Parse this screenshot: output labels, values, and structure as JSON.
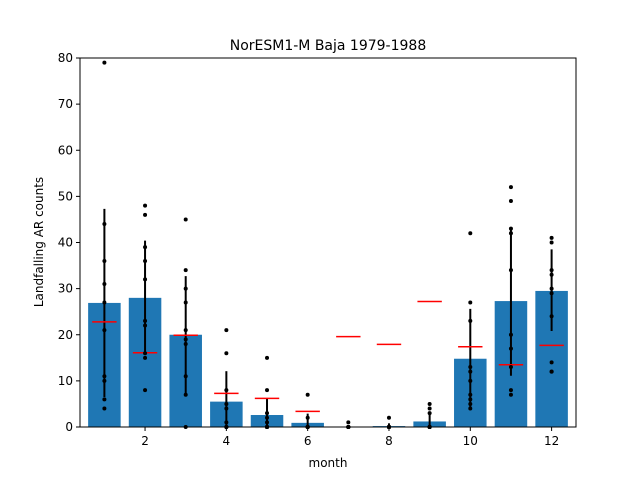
{
  "chart_data": {
    "type": "bar",
    "title": "NorESM1-M Baja 1979-1988",
    "xlabel": "month",
    "ylabel": "Landfalling AR counts",
    "ylim": [
      0,
      80
    ],
    "xlim": [
      0.4,
      12.6
    ],
    "grid": false,
    "x_ticks": [
      2,
      4,
      6,
      8,
      10,
      12
    ],
    "y_ticks": [
      0,
      10,
      20,
      30,
      40,
      50,
      60,
      70,
      80
    ],
    "categories": [
      1,
      2,
      3,
      4,
      5,
      6,
      7,
      8,
      9,
      10,
      11,
      12
    ],
    "values": [
      26.9,
      28.0,
      20.0,
      5.5,
      2.6,
      0.9,
      0.1,
      0.2,
      1.2,
      14.8,
      27.3,
      29.5
    ],
    "error_low": [
      6.5,
      15.6,
      7.3,
      0.0,
      0.0,
      0.0,
      0.0,
      0.0,
      0.0,
      4.2,
      11.1,
      20.8
    ],
    "error_high": [
      47.3,
      40.4,
      32.7,
      12.1,
      6.2,
      2.9,
      0.4,
      0.8,
      3.2,
      25.6,
      43.0,
      38.5
    ],
    "points": [
      [
        79,
        44,
        36,
        31,
        27,
        21,
        11,
        10,
        6,
        4
      ],
      [
        48,
        46,
        39,
        36,
        32,
        23,
        22,
        16,
        15,
        8
      ],
      [
        45,
        34,
        30,
        27,
        21,
        19,
        18,
        11,
        7,
        0
      ],
      [
        21,
        16,
        8,
        5,
        4,
        1,
        0,
        0,
        0,
        0
      ],
      [
        15,
        8,
        3,
        2,
        1,
        0,
        0,
        0,
        0,
        0
      ],
      [
        7,
        2,
        0,
        0,
        0,
        0,
        0,
        0,
        0,
        0
      ],
      [
        1,
        0,
        0,
        0,
        0,
        0,
        0,
        0,
        0,
        0
      ],
      [
        2,
        0,
        0,
        0,
        0,
        0,
        0,
        0,
        0,
        0
      ],
      [
        5,
        4,
        3,
        0,
        0,
        0,
        0,
        0,
        0,
        0
      ],
      [
        42,
        27,
        23,
        13,
        12,
        10,
        7,
        6,
        5,
        4
      ],
      [
        52,
        49,
        43,
        42,
        34,
        20,
        17,
        13,
        8,
        7
      ],
      [
        41,
        40,
        34,
        33,
        30,
        29,
        24,
        14,
        12,
        12
      ]
    ],
    "reference_values": [
      22.8,
      16.1,
      19.9,
      7.3,
      6.2,
      3.4,
      19.6,
      17.9,
      27.2,
      17.4,
      13.5,
      17.7
    ],
    "colors": {
      "bar": "#1f77b4",
      "errorbar": "#000000",
      "points": "#000000",
      "reference": "#ff0000",
      "axes": "#000000"
    }
  }
}
